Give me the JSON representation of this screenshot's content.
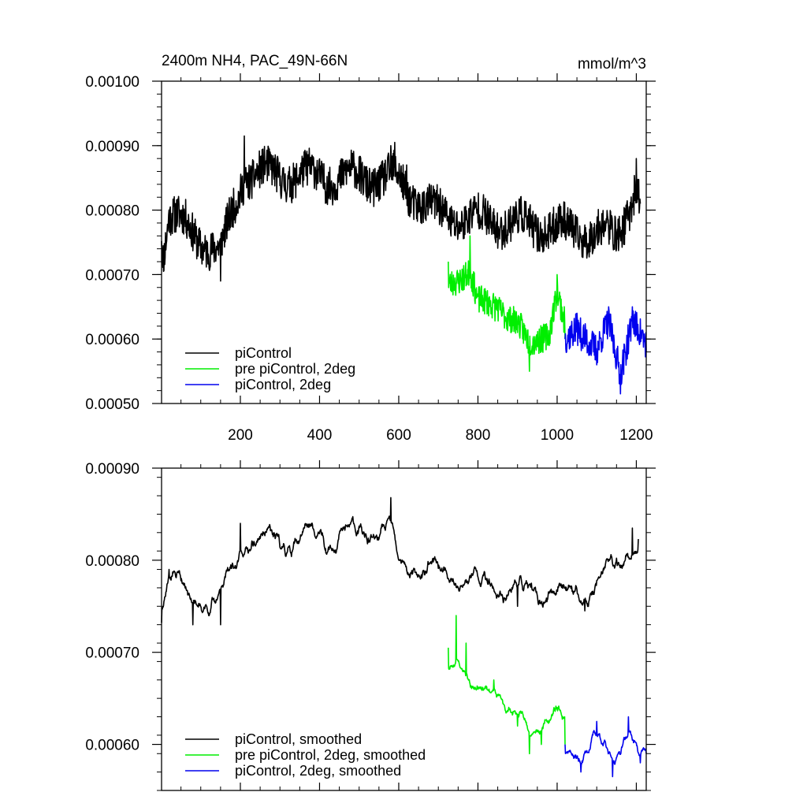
{
  "chart_data": [
    {
      "type": "line",
      "title": "2400m NH4, PAC_49N-66N",
      "units": "mmol/m^3",
      "xlim": [
        1,
        1225
      ],
      "ylim": [
        0.0005,
        0.001
      ],
      "x_ticks": [
        200,
        400,
        600,
        800,
        1000,
        1200
      ],
      "y_ticks": [
        "0.00050",
        "0.00060",
        "0.00070",
        "0.00080",
        "0.00090",
        "0.00100"
      ],
      "legend_position": "bottom-left",
      "series": [
        {
          "name": "piControl",
          "color": "#000000",
          "x_range": [
            1,
            1210
          ],
          "mean": 0.000785,
          "amplitude": 3e-05,
          "noise": 3e-05,
          "seed": 11,
          "smoothed": false,
          "keypoints": [
            [
              1,
              0.000752
            ],
            [
              6,
              0.000705
            ],
            [
              20,
              0.0008
            ],
            [
              150,
              0.00069
            ],
            [
              210,
              0.000915
            ],
            [
              580,
              0.0009
            ],
            [
              590,
              0.000905
            ],
            [
              620,
              0.00087
            ],
            [
              700,
              0.0008
            ],
            [
              1150,
              0.00074
            ],
            [
              1200,
              0.00088
            ],
            [
              1210,
              0.00081
            ]
          ]
        },
        {
          "name": "pre piControl, 2deg",
          "color": "#00ee00",
          "x_range": [
            725,
            1020
          ],
          "mean": 0.00064,
          "amplitude": 1e-05,
          "noise": 2.2e-05,
          "seed": 23,
          "smoothed": false,
          "keypoints": [
            [
              725,
              0.00072
            ],
            [
              780,
              0.00076
            ],
            [
              800,
              0.00067
            ],
            [
              850,
              0.00066
            ],
            [
              900,
              0.00061
            ],
            [
              930,
              0.00055
            ],
            [
              980,
              0.00059
            ],
            [
              1000,
              0.0007
            ],
            [
              1020,
              0.0006
            ]
          ]
        },
        {
          "name": "piControl, 2deg",
          "color": "#0000ee",
          "x_range": [
            1020,
            1225
          ],
          "mean": 0.000598,
          "amplitude": 1e-05,
          "noise": 2.5e-05,
          "seed": 37,
          "smoothed": false,
          "keypoints": [
            [
              1020,
              0.0006
            ],
            [
              1050,
              0.00064
            ],
            [
              1100,
              0.00056
            ],
            [
              1130,
              0.00065
            ],
            [
              1160,
              0.000515
            ],
            [
              1190,
              0.00065
            ],
            [
              1225,
              0.00058
            ]
          ]
        }
      ]
    },
    {
      "type": "line",
      "title": "",
      "xlim": [
        1,
        1225
      ],
      "ylim": [
        0.00055,
        0.0009
      ],
      "x_ticks": [
        200,
        400,
        600,
        800,
        1000,
        1200
      ],
      "y_ticks": [
        "0.00060",
        "0.00070",
        "0.00080",
        "0.00090"
      ],
      "legend_position": "bottom-left",
      "series": [
        {
          "name": "piControl, smoothed",
          "color": "#000000",
          "x_range": [
            1,
            1205
          ],
          "mean": 0.000788,
          "amplitude": 2e-05,
          "noise": 2.2e-05,
          "seed": 11,
          "smoothed": true,
          "keypoints": [
            [
              1,
              0.000732
            ],
            [
              20,
              0.00079
            ],
            [
              80,
              0.00073
            ],
            [
              150,
              0.00073
            ],
            [
              200,
              0.00084
            ],
            [
              580,
              0.000868
            ],
            [
              600,
              0.0008
            ],
            [
              900,
              0.00075
            ],
            [
              1070,
              0.000745
            ],
            [
              1190,
              0.000835
            ],
            [
              1205,
              0.000823
            ]
          ]
        },
        {
          "name": "pre piControl, 2deg, smoothed",
          "color": "#00ee00",
          "x_range": [
            725,
            1020
          ],
          "mean": 0.000645,
          "amplitude": 1e-05,
          "noise": 1.6e-05,
          "seed": 23,
          "smoothed": true,
          "keypoints": [
            [
              725,
              0.000705
            ],
            [
              745,
              0.00074
            ],
            [
              770,
              0.00071
            ],
            [
              800,
              0.00066
            ],
            [
              840,
              0.00067
            ],
            [
              900,
              0.00062
            ],
            [
              930,
              0.00059
            ],
            [
              960,
              0.0006
            ],
            [
              1000,
              0.00064
            ],
            [
              1020,
              0.0006
            ]
          ]
        },
        {
          "name": "piControl, 2deg, smoothed",
          "color": "#0000ee",
          "x_range": [
            1020,
            1225
          ],
          "mean": 0.000598,
          "amplitude": 5e-06,
          "noise": 1.6e-05,
          "seed": 37,
          "smoothed": true,
          "keypoints": [
            [
              1020,
              0.0006
            ],
            [
              1060,
              0.00057
            ],
            [
              1100,
              0.000625
            ],
            [
              1140,
              0.000565
            ],
            [
              1180,
              0.00063
            ],
            [
              1210,
              0.00058
            ],
            [
              1225,
              0.00059
            ]
          ]
        }
      ]
    }
  ]
}
